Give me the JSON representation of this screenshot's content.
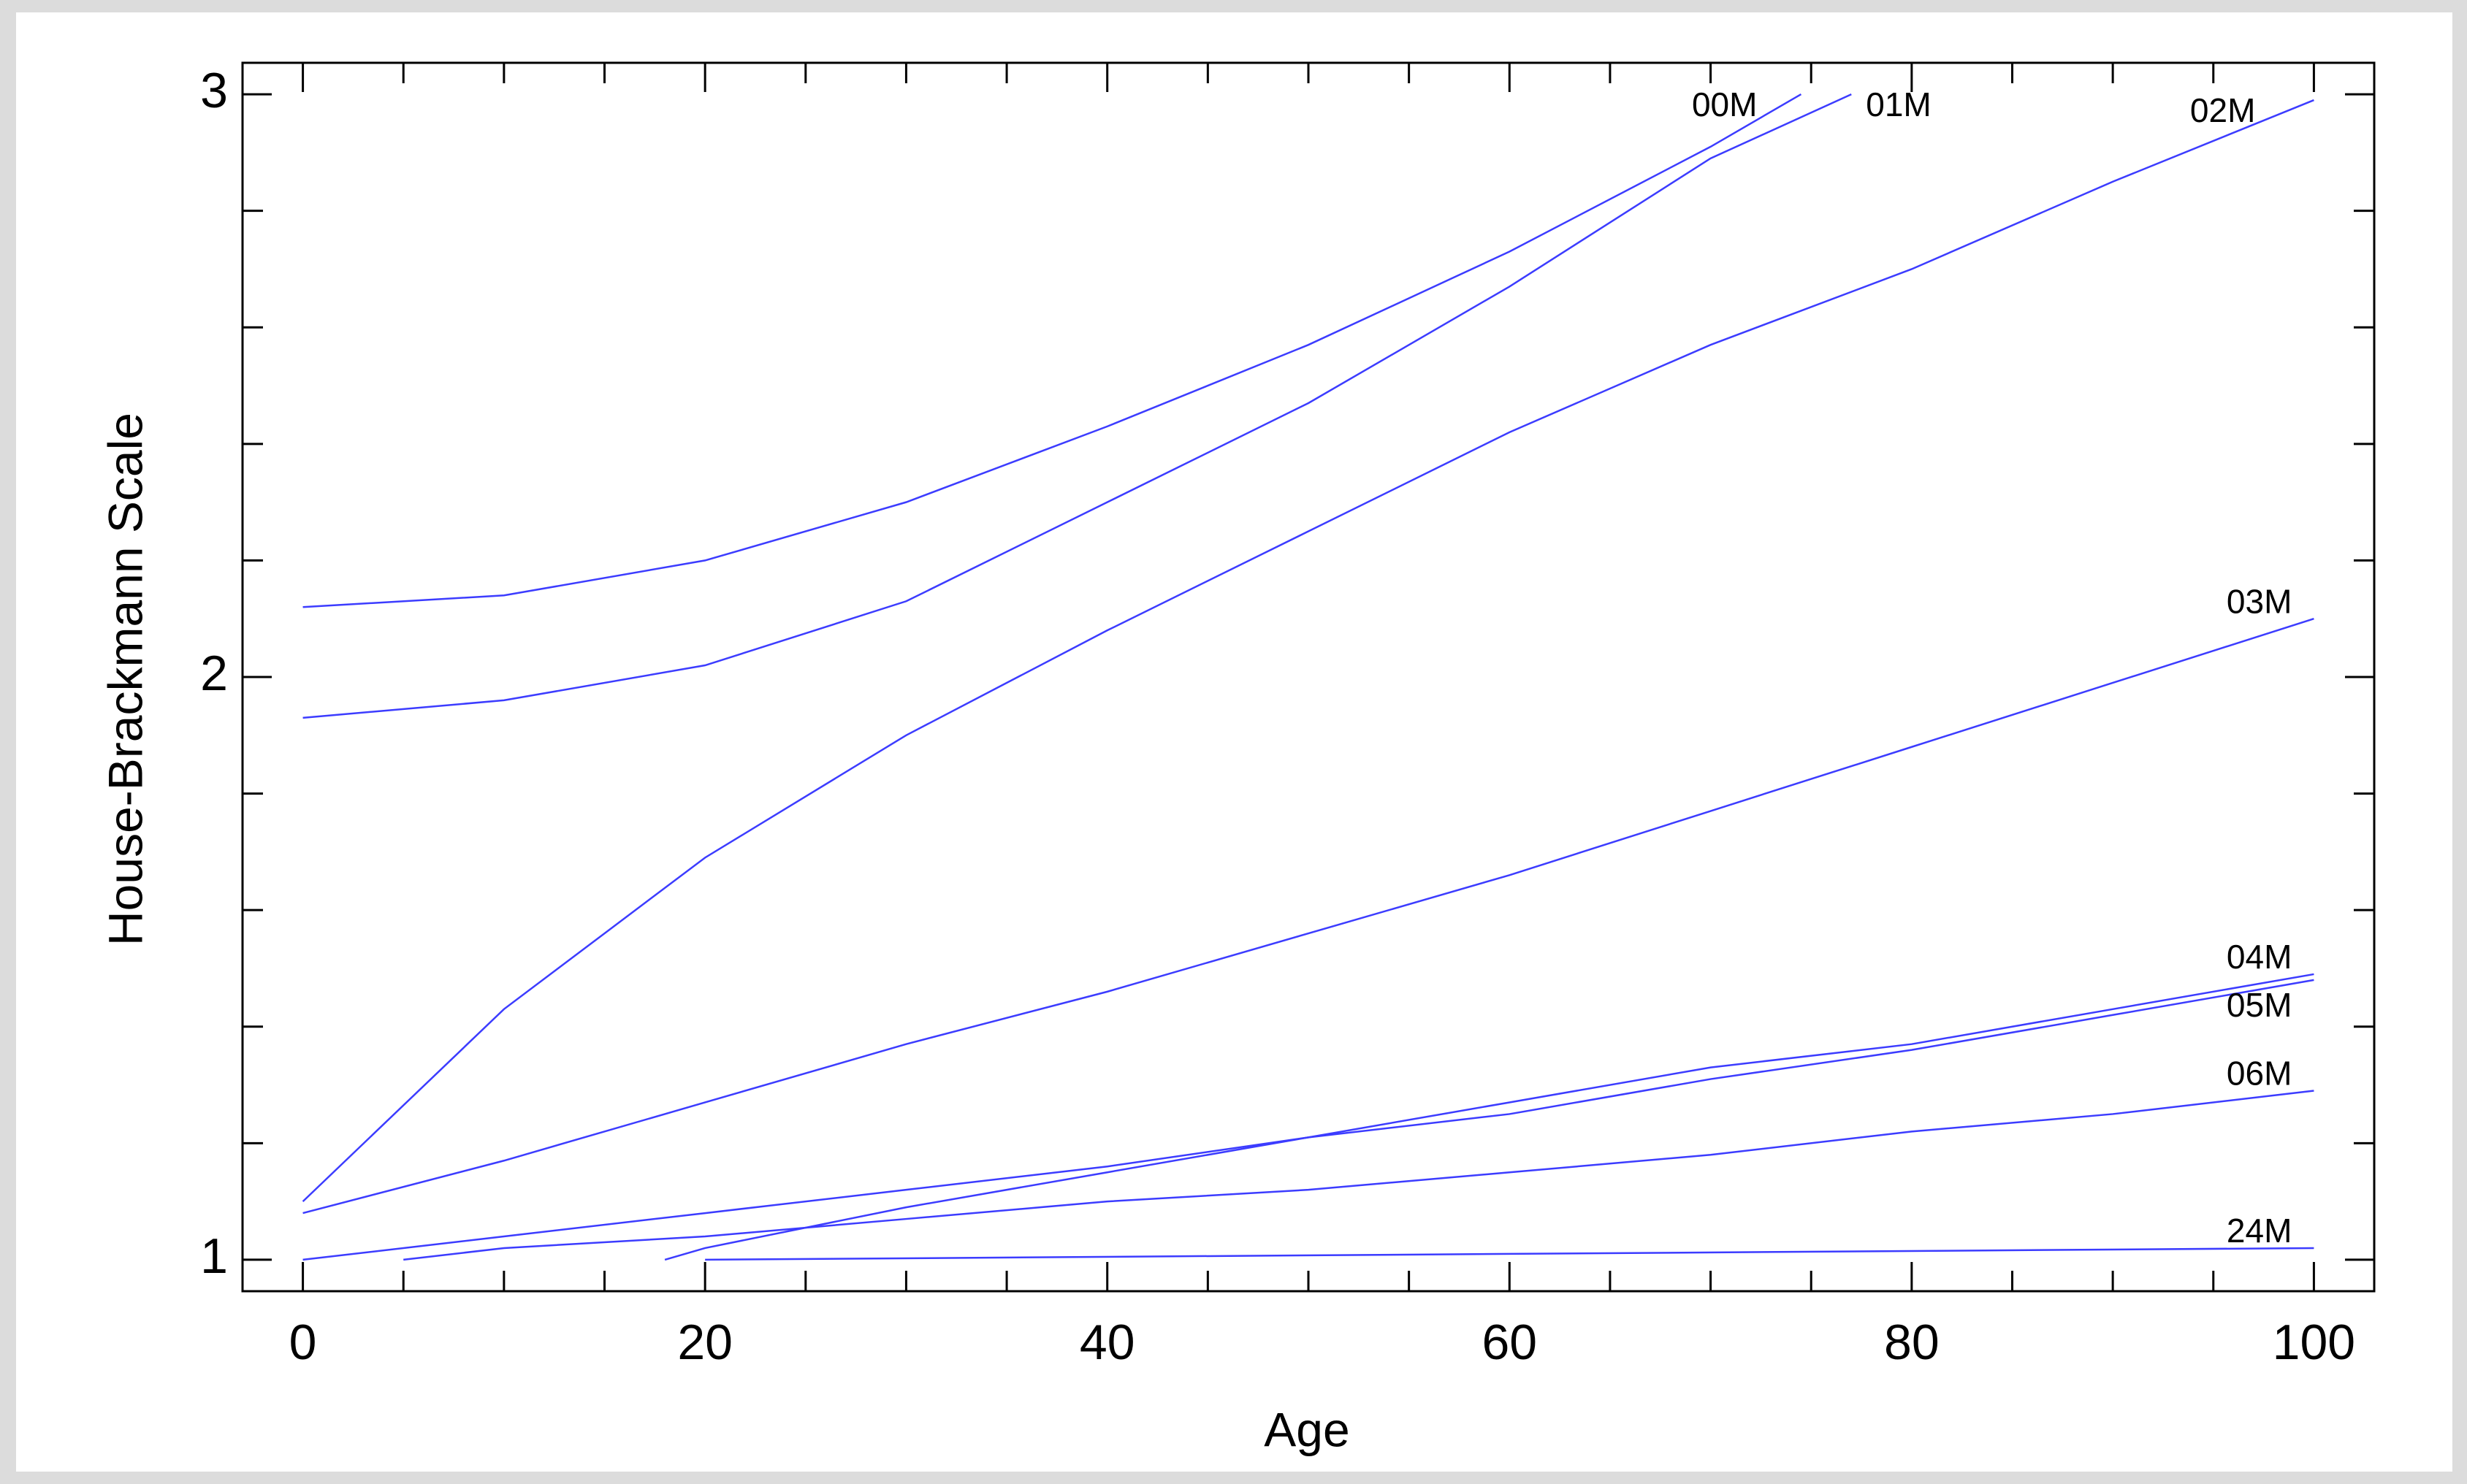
{
  "chart_data": {
    "type": "line",
    "x_label": "Age",
    "y_label": "House-Brackmann Scale",
    "xlim": [
      -3,
      103
    ],
    "ylim": [
      0.946,
      3.054
    ],
    "xticks": [
      0,
      20,
      40,
      60,
      80,
      100
    ],
    "xticks_minor": [
      5,
      10,
      15,
      25,
      30,
      35,
      45,
      50,
      55,
      65,
      70,
      75,
      85,
      90,
      95
    ],
    "yticks": [
      1,
      2,
      3
    ],
    "yticks_minor": [
      1.2,
      1.4,
      1.6,
      1.8,
      2.2,
      2.4,
      2.6,
      2.8
    ],
    "series": [
      {
        "name": "00M",
        "color": "#3c3cff",
        "x": [
          0,
          10,
          20,
          30,
          40,
          50,
          60,
          70,
          74.5
        ],
        "values": [
          2.12,
          2.14,
          2.2,
          2.3,
          2.43,
          2.57,
          2.73,
          2.91,
          3.0
        ]
      },
      {
        "name": "01M",
        "color": "#3c3cff",
        "x": [
          0,
          10,
          20,
          30,
          40,
          50,
          60,
          70,
          77
        ],
        "values": [
          1.93,
          1.96,
          2.02,
          2.13,
          2.3,
          2.47,
          2.67,
          2.89,
          3.0
        ]
      },
      {
        "name": "02M",
        "color": "#3c3cff",
        "x": [
          0,
          10,
          20,
          30,
          40,
          50,
          60,
          70,
          80,
          90,
          100
        ],
        "values": [
          1.1,
          1.43,
          1.69,
          1.9,
          2.08,
          2.25,
          2.42,
          2.57,
          2.7,
          2.85,
          2.99
        ]
      },
      {
        "name": "03M",
        "color": "#3c3cff",
        "x": [
          0,
          10,
          20,
          30,
          40,
          50,
          60,
          70,
          80,
          90,
          100
        ],
        "values": [
          1.08,
          1.17,
          1.27,
          1.37,
          1.46,
          1.56,
          1.66,
          1.77,
          1.88,
          1.99,
          2.1
        ]
      },
      {
        "name": "04M",
        "color": "#3c3cff",
        "x": [
          0,
          10,
          20,
          30,
          40,
          50,
          60,
          70,
          80,
          90,
          100
        ],
        "values": [
          1.0,
          1.04,
          1.08,
          1.12,
          1.16,
          1.21,
          1.27,
          1.33,
          1.37,
          1.43,
          1.49
        ]
      },
      {
        "name": "05M",
        "color": "#3c3cff",
        "x": [
          18,
          20,
          30,
          40,
          50,
          60,
          70,
          80,
          90,
          100
        ],
        "values": [
          1.0,
          1.02,
          1.09,
          1.15,
          1.21,
          1.25,
          1.31,
          1.36,
          1.42,
          1.48
        ]
      },
      {
        "name": "06M",
        "color": "#3c3cff",
        "x": [
          5,
          10,
          20,
          30,
          40,
          50,
          60,
          70,
          80,
          90,
          100
        ],
        "values": [
          1.0,
          1.02,
          1.04,
          1.07,
          1.1,
          1.12,
          1.15,
          1.18,
          1.22,
          1.25,
          1.29
        ]
      },
      {
        "name": "24M",
        "color": "#3c3cff",
        "x": [
          20,
          60,
          100
        ],
        "values": [
          1.0,
          1.01,
          1.02
        ]
      }
    ]
  }
}
